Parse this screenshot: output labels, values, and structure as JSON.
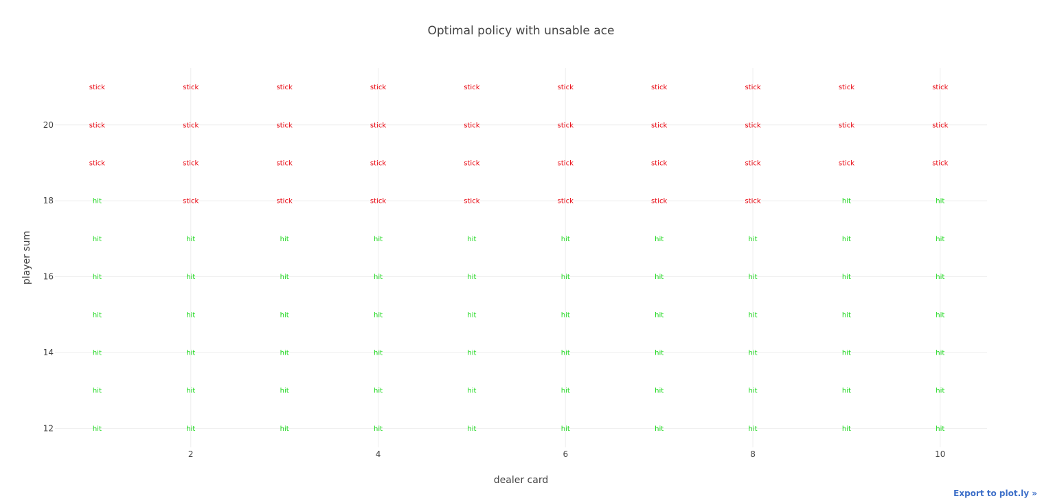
{
  "chart_data": {
    "type": "table",
    "title": "Optimal policy with unsable ace",
    "xlabel": "dealer card",
    "ylabel": "player sum",
    "x": [
      1,
      2,
      3,
      4,
      5,
      6,
      7,
      8,
      9,
      10
    ],
    "y": [
      12,
      13,
      14,
      15,
      16,
      17,
      18,
      19,
      20,
      21
    ],
    "xlim": [
      0.55,
      10.5
    ],
    "ylim": [
      11.5,
      21.5
    ],
    "xticks": [
      2,
      4,
      6,
      8,
      10
    ],
    "xtick_labels": [
      "2",
      "4",
      "6",
      "8",
      "10"
    ],
    "yticks": [
      12,
      14,
      16,
      18,
      20
    ],
    "ytick_labels": [
      "12",
      "14",
      "16",
      "18",
      "20"
    ],
    "grid": true,
    "legend": "none",
    "colors": {
      "stick": "#e8000b",
      "hit": "#1ad81a"
    },
    "labels": {
      "12": [
        "hit",
        "hit",
        "hit",
        "hit",
        "hit",
        "hit",
        "hit",
        "hit",
        "hit",
        "hit"
      ],
      "13": [
        "hit",
        "hit",
        "hit",
        "hit",
        "hit",
        "hit",
        "hit",
        "hit",
        "hit",
        "hit"
      ],
      "14": [
        "hit",
        "hit",
        "hit",
        "hit",
        "hit",
        "hit",
        "hit",
        "hit",
        "hit",
        "hit"
      ],
      "15": [
        "hit",
        "hit",
        "hit",
        "hit",
        "hit",
        "hit",
        "hit",
        "hit",
        "hit",
        "hit"
      ],
      "16": [
        "hit",
        "hit",
        "hit",
        "hit",
        "hit",
        "hit",
        "hit",
        "hit",
        "hit",
        "hit"
      ],
      "17": [
        "hit",
        "hit",
        "hit",
        "hit",
        "hit",
        "hit",
        "hit",
        "hit",
        "hit",
        "hit"
      ],
      "18": [
        "hit",
        "stick",
        "stick",
        "stick",
        "stick",
        "stick",
        "stick",
        "stick",
        "hit",
        "hit"
      ],
      "19": [
        "stick",
        "stick",
        "stick",
        "stick",
        "stick",
        "stick",
        "stick",
        "stick",
        "stick",
        "stick"
      ],
      "20": [
        "stick",
        "stick",
        "stick",
        "stick",
        "stick",
        "stick",
        "stick",
        "stick",
        "stick",
        "stick"
      ],
      "21": [
        "stick",
        "stick",
        "stick",
        "stick",
        "stick",
        "stick",
        "stick",
        "stick",
        "stick",
        "stick"
      ]
    }
  },
  "export_link": "Export to plot.ly »"
}
